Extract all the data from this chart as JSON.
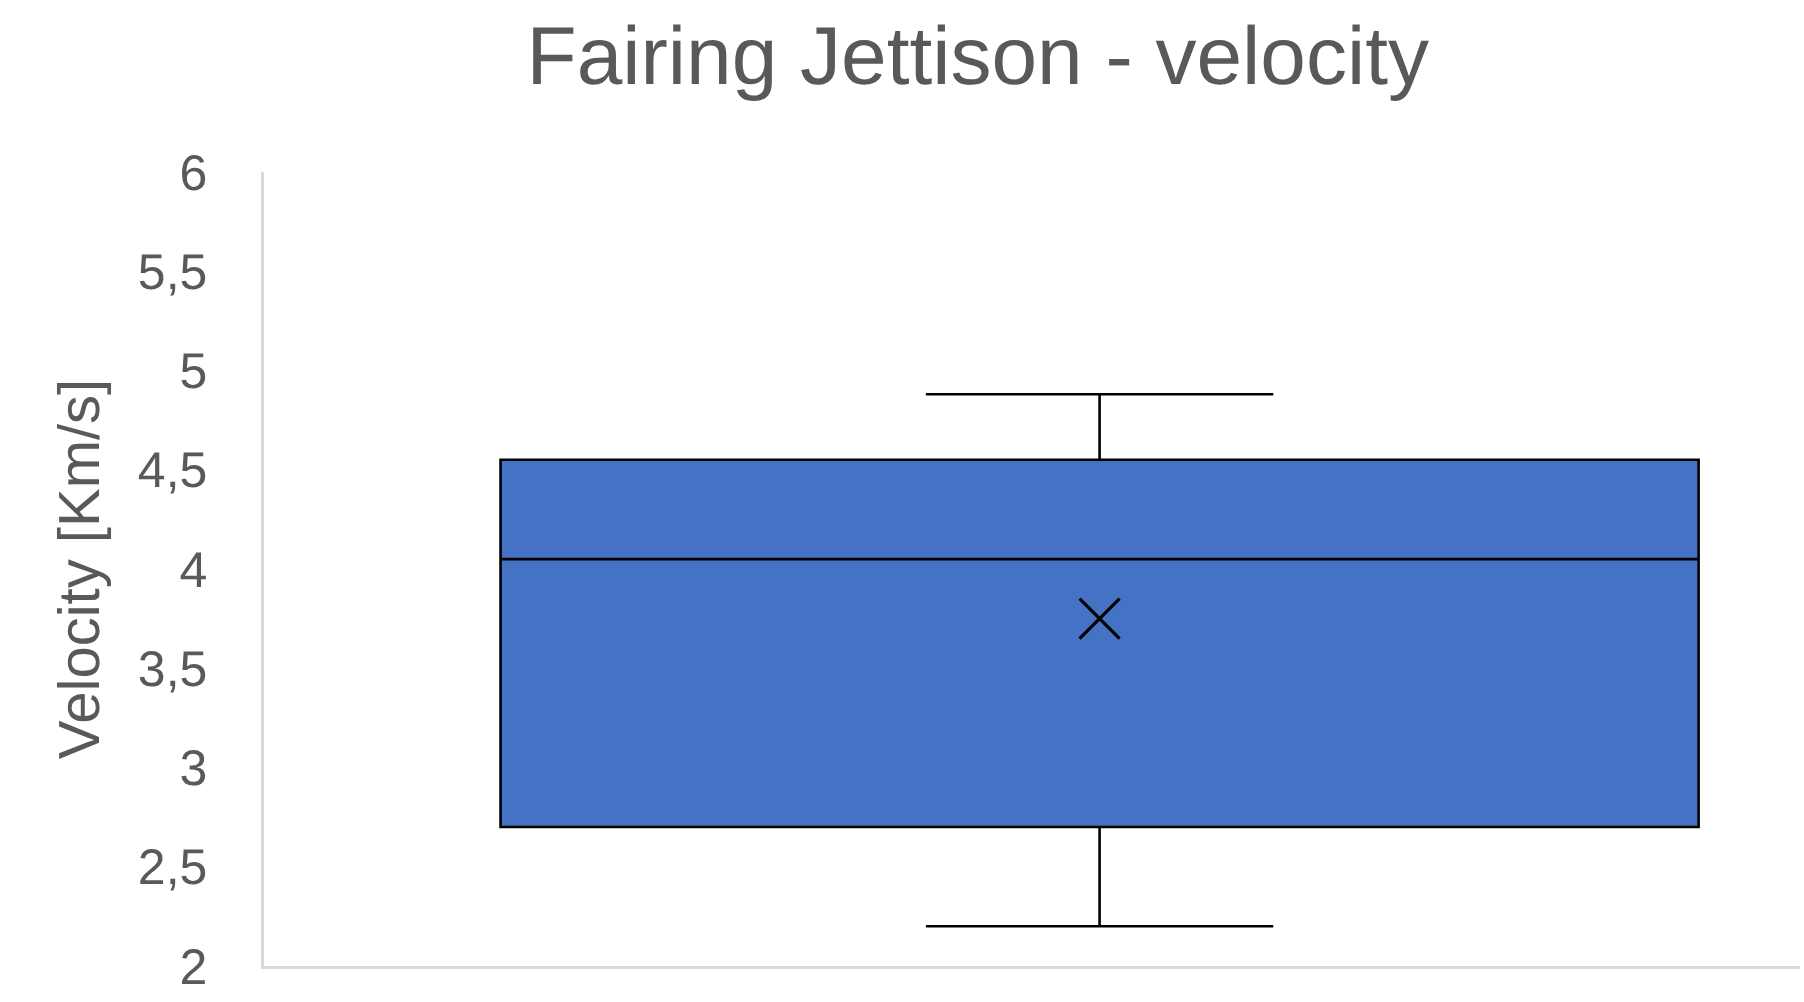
{
  "chart_data": {
    "type": "box",
    "title": "Fairing Jettison - velocity",
    "ylabel": "Velocity [Km/s]",
    "categories": [
      null
    ],
    "series": [
      {
        "color": "#4472c4",
        "boxes": [
          {
            "low": 2.2,
            "q1": 2.7,
            "median": 4.05,
            "q3": 4.55,
            "high": 4.88,
            "mean": 3.75
          }
        ]
      }
    ],
    "ylim": [
      2,
      6
    ],
    "yticks": [
      2,
      {
        "value": 2.5,
        "label": "2,5"
      },
      3,
      {
        "value": 3.5,
        "label": "3,5"
      },
      4,
      {
        "value": 4.5,
        "label": "4,5"
      },
      5,
      {
        "value": 5.5,
        "label": "5,5"
      },
      6
    ],
    "marker": "cross",
    "grid": false,
    "tick_labels": "y"
  }
}
